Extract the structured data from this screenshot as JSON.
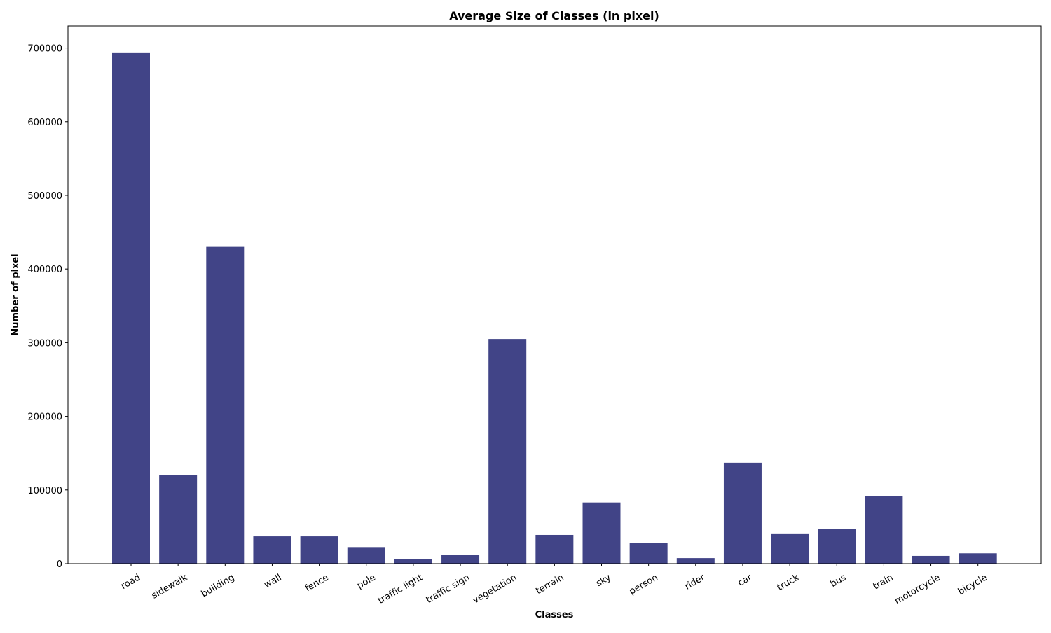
{
  "chart_data": {
    "type": "bar",
    "title": "Average Size of Classes (in pixel)",
    "xlabel": "Classes",
    "ylabel": "Number of pixel",
    "categories": [
      "road",
      "sidewalk",
      "building",
      "wall",
      "fence",
      "pole",
      "traffic light",
      "traffic sign",
      "vegetation",
      "terrain",
      "sky",
      "person",
      "rider",
      "car",
      "truck",
      "bus",
      "train",
      "motorcycle",
      "bicycle"
    ],
    "values": [
      694000,
      120000,
      430000,
      37000,
      37000,
      22500,
      6500,
      11500,
      305000,
      39000,
      83000,
      28500,
      7500,
      137000,
      41000,
      47500,
      91500,
      10500,
      14000
    ],
    "ylim": [
      0,
      730000
    ],
    "yticks": [
      0,
      100000,
      200000,
      300000,
      400000,
      500000,
      600000,
      700000
    ],
    "ytick_labels": [
      "0",
      "100000",
      "200000",
      "300000",
      "400000",
      "500000",
      "600000",
      "700000"
    ],
    "bar_color": "#414487",
    "grid": false,
    "legend": "none"
  }
}
